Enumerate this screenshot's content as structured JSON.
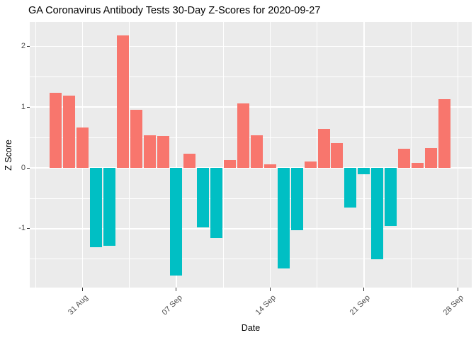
{
  "title": "GA Coronavirus Antibody Tests 30-Day Z-Scores for 2020-09-27",
  "chart_data": {
    "type": "bar",
    "title": "GA Coronavirus Antibody Tests 30-Day Z-Scores for 2020-09-27",
    "xlabel": "Date",
    "ylabel": "Z Score",
    "x": [
      "2020-08-29",
      "2020-08-30",
      "2020-08-31",
      "2020-09-01",
      "2020-09-02",
      "2020-09-03",
      "2020-09-04",
      "2020-09-05",
      "2020-09-06",
      "2020-09-07",
      "2020-09-08",
      "2020-09-09",
      "2020-09-10",
      "2020-09-11",
      "2020-09-12",
      "2020-09-13",
      "2020-09-14",
      "2020-09-15",
      "2020-09-16",
      "2020-09-17",
      "2020-09-18",
      "2020-09-19",
      "2020-09-20",
      "2020-09-21",
      "2020-09-22",
      "2020-09-23",
      "2020-09-24",
      "2020-09-25",
      "2020-09-26",
      "2020-09-27"
    ],
    "values": [
      1.24,
      1.19,
      0.66,
      -1.31,
      -1.28,
      2.18,
      0.96,
      0.54,
      0.52,
      -1.77,
      0.23,
      -0.98,
      -1.15,
      0.13,
      1.06,
      0.54,
      0.06,
      -1.66,
      -1.03,
      0.1,
      0.64,
      0.41,
      -0.65,
      -0.1,
      -1.5,
      -0.95,
      0.31,
      0.08,
      0.33,
      1.13
    ],
    "ylim": [
      -1.96,
      2.4
    ],
    "grid": "on",
    "legend": "none",
    "x_ticks": {
      "labels": [
        "31 Aug",
        "07 Sep",
        "14 Sep",
        "21 Sep",
        "28 Sep"
      ],
      "day_index": [
        2,
        9,
        16,
        23,
        30
      ],
      "minor_day_index": [
        -1.5,
        5.5,
        12.5,
        19.5,
        26.5
      ]
    },
    "y_ticks": {
      "labels": [
        "2",
        "1",
        "0",
        "-1"
      ],
      "values": [
        2,
        1,
        0,
        -1
      ],
      "minor_values": [
        1.5,
        0.5,
        -0.5,
        -1.5
      ]
    },
    "colors": {
      "positive_bar": "#F8766D",
      "negative_bar": "#00BFC4",
      "panel_background": "#EBEBEB",
      "gridline": "#FFFFFF",
      "axis_text": "#4D4D4D",
      "title_text": "#000000",
      "tick_mark": "#333333"
    }
  }
}
